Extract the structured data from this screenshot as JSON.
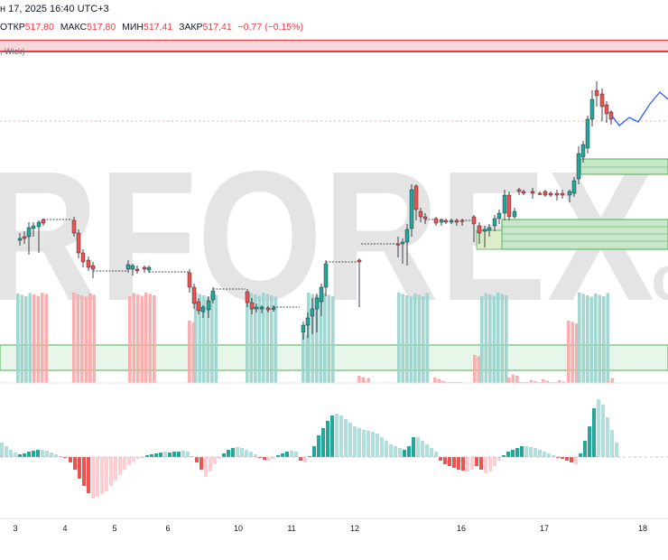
{
  "header": {
    "datetime": "н 17, 2025 16:40 UTC+3",
    "ohlc": {
      "open_label": "ОТКР",
      "open": "517,80",
      "high_label": "МАКС",
      "high": "517,80",
      "low_label": "МИН",
      "low": "517,41",
      "close_label": "ЗАКР",
      "close": "517,41",
      "change": "−0,77 (−0,15%)"
    },
    "indicator_label": ", Wick)"
  },
  "watermark": {
    "text": "RFOREX",
    "suffix": ".c"
  },
  "x_axis": {
    "ticks": [
      "3",
      "4",
      "5",
      "6",
      "10",
      "11",
      "12",
      "16",
      "17",
      "18"
    ]
  },
  "colors": {
    "up": "#26a69a",
    "down": "#ef5350",
    "up_light": "#b2dfdb",
    "down_light": "#ffcdd2",
    "zone_fill": "#c8e6c9",
    "zone_border": "#4caf50",
    "resistance": "#f23645",
    "projection": "#2962ff"
  }
}
